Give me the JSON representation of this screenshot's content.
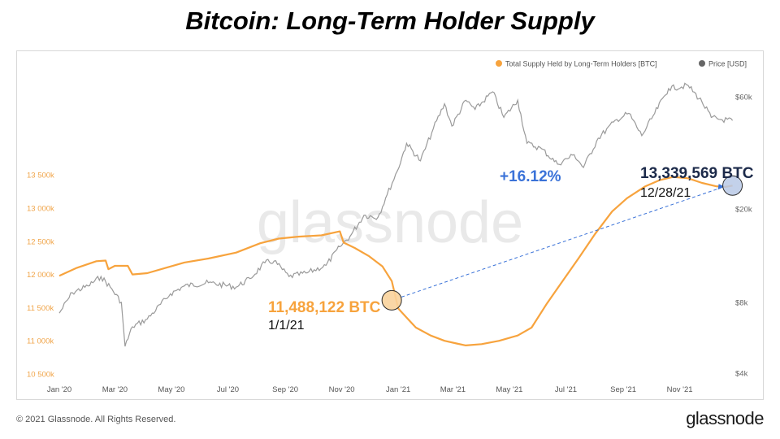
{
  "title": "Bitcoin: Long-Term Holder Supply",
  "footer": {
    "copyright": "© 2021 Glassnode. All Rights Reserved.",
    "brand": "glassnode"
  },
  "watermark": "glassnode",
  "colors": {
    "lth": "#f7a33d",
    "price": "#9a9a9a",
    "axisLeft": "#f0a448",
    "accentBlue": "#3a72d8",
    "darkNavy": "#1c2a4a"
  },
  "chart_data": {
    "type": "line",
    "legend": {
      "placement": "top-right",
      "items": [
        "Total Supply Held by Long-Term Holders [BTC]",
        "Price [USD]"
      ]
    },
    "x_ticks": [
      "Jan '20",
      "Mar '20",
      "May '20",
      "Jul '20",
      "Sep '20",
      "Nov '20",
      "Jan '21",
      "Mar '21",
      "May '21",
      "Jul '21",
      "Sep '21",
      "Nov '21"
    ],
    "y_left": {
      "ticks": [
        "10 500k",
        "11 000k",
        "11 500k",
        "12 000k",
        "12 500k",
        "13 000k",
        "13 500k"
      ],
      "range": [
        10500000,
        13750000
      ]
    },
    "y_right": {
      "scale": "log",
      "ticks": [
        "$4k",
        "$8k",
        "$20k",
        "$60k"
      ],
      "range": [
        4000,
        60000
      ]
    },
    "grid": false,
    "series": [
      {
        "name": "Total Supply Held by Long-Term Holders [BTC]",
        "axis": "left",
        "points": [
          [
            "2020-01-01",
            11980000
          ],
          [
            "2020-01-20",
            12100000
          ],
          [
            "2020-02-10",
            12200000
          ],
          [
            "2020-02-20",
            12210000
          ],
          [
            "2020-02-23",
            12080000
          ],
          [
            "2020-03-01",
            12130000
          ],
          [
            "2020-03-15",
            12130000
          ],
          [
            "2020-03-20",
            12000000
          ],
          [
            "2020-04-05",
            12020000
          ],
          [
            "2020-04-25",
            12100000
          ],
          [
            "2020-05-15",
            12180000
          ],
          [
            "2020-06-10",
            12240000
          ],
          [
            "2020-07-10",
            12330000
          ],
          [
            "2020-08-05",
            12470000
          ],
          [
            "2020-08-25",
            12540000
          ],
          [
            "2020-09-15",
            12570000
          ],
          [
            "2020-10-10",
            12590000
          ],
          [
            "2020-10-30",
            12650000
          ],
          [
            "2020-11-03",
            12480000
          ],
          [
            "2020-11-15",
            12400000
          ],
          [
            "2020-11-30",
            12280000
          ],
          [
            "2020-12-15",
            12120000
          ],
          [
            "2020-12-25",
            11900000
          ],
          [
            "2021-01-01",
            11488122
          ],
          [
            "2021-01-10",
            11350000
          ],
          [
            "2021-01-20",
            11200000
          ],
          [
            "2021-02-05",
            11080000
          ],
          [
            "2021-02-20",
            11000000
          ],
          [
            "2021-03-05",
            10960000
          ],
          [
            "2021-03-15",
            10930000
          ],
          [
            "2021-04-01",
            10950000
          ],
          [
            "2021-04-20",
            11000000
          ],
          [
            "2021-05-10",
            11080000
          ],
          [
            "2021-05-25",
            11200000
          ],
          [
            "2021-06-10",
            11550000
          ],
          [
            "2021-06-25",
            11850000
          ],
          [
            "2021-07-15",
            12250000
          ],
          [
            "2021-08-01",
            12600000
          ],
          [
            "2021-08-20",
            12950000
          ],
          [
            "2021-09-05",
            13150000
          ],
          [
            "2021-09-25",
            13330000
          ],
          [
            "2021-10-10",
            13420000
          ],
          [
            "2021-10-25",
            13470000
          ],
          [
            "2021-11-10",
            13450000
          ],
          [
            "2021-11-25",
            13380000
          ],
          [
            "2021-12-10",
            13330000
          ],
          [
            "2021-12-20",
            13320000
          ],
          [
            "2021-12-28",
            13339569
          ]
        ]
      },
      {
        "name": "Price [USD]",
        "axis": "right",
        "points": [
          [
            "2020-01-01",
            7200
          ],
          [
            "2020-01-15",
            8800
          ],
          [
            "2020-02-01",
            9400
          ],
          [
            "2020-02-15",
            10300
          ],
          [
            "2020-02-25",
            9300
          ],
          [
            "2020-03-08",
            8000
          ],
          [
            "2020-03-12",
            5200
          ],
          [
            "2020-03-20",
            6300
          ],
          [
            "2020-04-05",
            6800
          ],
          [
            "2020-04-30",
            8700
          ],
          [
            "2020-05-15",
            9400
          ],
          [
            "2020-06-10",
            9700
          ],
          [
            "2020-07-10",
            9300
          ],
          [
            "2020-07-25",
            10100
          ],
          [
            "2020-08-10",
            11800
          ],
          [
            "2020-08-20",
            12000
          ],
          [
            "2020-09-05",
            10300
          ],
          [
            "2020-09-25",
            10700
          ],
          [
            "2020-10-15",
            11500
          ],
          [
            "2020-10-30",
            13800
          ],
          [
            "2020-11-10",
            15300
          ],
          [
            "2020-11-25",
            18800
          ],
          [
            "2020-12-10",
            18400
          ],
          [
            "2020-12-20",
            23000
          ],
          [
            "2020-12-31",
            29000
          ],
          [
            "2021-01-10",
            38000
          ],
          [
            "2021-01-25",
            32000
          ],
          [
            "2021-02-08",
            44000
          ],
          [
            "2021-02-20",
            56000
          ],
          [
            "2021-02-28",
            45000
          ],
          [
            "2021-03-15",
            58000
          ],
          [
            "2021-03-25",
            53000
          ],
          [
            "2021-04-13",
            63000
          ],
          [
            "2021-04-25",
            49000
          ],
          [
            "2021-05-10",
            58000
          ],
          [
            "2021-05-20",
            38000
          ],
          [
            "2021-06-05",
            36000
          ],
          [
            "2021-06-22",
            31000
          ],
          [
            "2021-07-10",
            34000
          ],
          [
            "2021-07-20",
            30000
          ],
          [
            "2021-08-05",
            40000
          ],
          [
            "2021-08-25",
            48000
          ],
          [
            "2021-09-07",
            51000
          ],
          [
            "2021-09-21",
            41000
          ],
          [
            "2021-10-05",
            51000
          ],
          [
            "2021-10-20",
            65000
          ],
          [
            "2021-11-10",
            67000
          ],
          [
            "2021-11-25",
            57000
          ],
          [
            "2021-12-05",
            49000
          ],
          [
            "2021-12-15",
            48000
          ],
          [
            "2021-12-28",
            47500
          ]
        ]
      }
    ],
    "annotations": {
      "start": {
        "label": "11,488,122 BTC",
        "date_label": "1/1/21"
      },
      "end": {
        "label": "13,339,569 BTC",
        "date_label": "12/28/21"
      },
      "change": "+16.12%"
    }
  }
}
